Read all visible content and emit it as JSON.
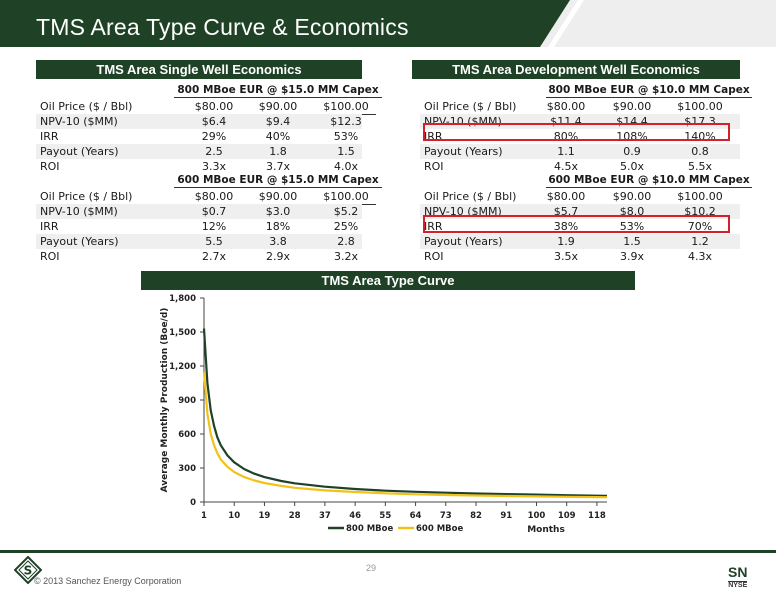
{
  "slide": {
    "title": "TMS Area Type Curve & Economics",
    "page_number": "29",
    "copyright": "© 2013 Sanchez Energy Corporation",
    "logo_letter": "S",
    "ticker": "SN",
    "exchange": "NYSE"
  },
  "single_well": {
    "title": "TMS Area Single Well Economics",
    "tables": [
      {
        "caption": "800 MBoe EUR @ $15.0 MM Capex",
        "rows": [
          {
            "label": "Oil Price ($ / Bbl)",
            "values": [
              "$80.00",
              "$90.00",
              "$100.00"
            ]
          },
          {
            "label": "NPV-10 ($MM)",
            "values": [
              "$6.4",
              "$9.4",
              "$12.3"
            ]
          },
          {
            "label": "IRR",
            "values": [
              "29%",
              "40%",
              "53%"
            ]
          },
          {
            "label": "Payout (Years)",
            "values": [
              "2.5",
              "1.8",
              "1.5"
            ]
          },
          {
            "label": "ROI",
            "values": [
              "3.3x",
              "3.7x",
              "4.0x"
            ]
          }
        ]
      },
      {
        "caption": "600 MBoe EUR @ $15.0 MM Capex",
        "rows": [
          {
            "label": "Oil Price ($ / Bbl)",
            "values": [
              "$80.00",
              "$90.00",
              "$100.00"
            ]
          },
          {
            "label": "NPV-10 ($MM)",
            "values": [
              "$0.7",
              "$3.0",
              "$5.2"
            ]
          },
          {
            "label": "IRR",
            "values": [
              "12%",
              "18%",
              "25%"
            ]
          },
          {
            "label": "Payout (Years)",
            "values": [
              "5.5",
              "3.8",
              "2.8"
            ]
          },
          {
            "label": "ROI",
            "values": [
              "2.7x",
              "2.9x",
              "3.2x"
            ]
          }
        ]
      }
    ]
  },
  "development_well": {
    "title": "TMS Area Development Well Economics",
    "tables": [
      {
        "caption": "800 MBoe EUR @ $10.0 MM Capex",
        "rows": [
          {
            "label": "Oil Price ($ / Bbl)",
            "values": [
              "$80.00",
              "$90.00",
              "$100.00"
            ]
          },
          {
            "label": "NPV-10 ($MM)",
            "values": [
              "$11.4",
              "$14.4",
              "$17.3"
            ]
          },
          {
            "label": "IRR",
            "values": [
              "80%",
              "108%",
              "140%"
            ]
          },
          {
            "label": "Payout (Years)",
            "values": [
              "1.1",
              "0.9",
              "0.8"
            ]
          },
          {
            "label": "ROI",
            "values": [
              "4.5x",
              "5.0x",
              "5.5x"
            ]
          }
        ]
      },
      {
        "caption": "600 MBoe EUR @ $10.0 MM Capex",
        "rows": [
          {
            "label": "Oil Price ($ / Bbl)",
            "values": [
              "$80.00",
              "$90.00",
              "$100.00"
            ]
          },
          {
            "label": "NPV-10 ($MM)",
            "values": [
              "$5.7",
              "$8.0",
              "$10.2"
            ]
          },
          {
            "label": "IRR",
            "values": [
              "38%",
              "53%",
              "70%"
            ]
          },
          {
            "label": "Payout (Years)",
            "values": [
              "1.9",
              "1.5",
              "1.2"
            ]
          },
          {
            "label": "ROI",
            "values": [
              "3.5x",
              "3.9x",
              "4.3x"
            ]
          }
        ]
      }
    ]
  },
  "colors": {
    "brand_green": "#1f4227",
    "series_800": "#1f4227",
    "series_600": "#f2c21a",
    "highlight_red": "#d3202b"
  },
  "chart_data": {
    "type": "line",
    "title": "TMS Area Type Curve",
    "xlabel": "Months",
    "ylabel": "Average Monthly Production (Boe/d)",
    "x_ticks": [
      "1",
      "10",
      "19",
      "28",
      "37",
      "46",
      "55",
      "64",
      "73",
      "82",
      "91",
      "100",
      "109",
      "118"
    ],
    "y_ticks": [
      "0",
      "300",
      "600",
      "900",
      "1,200",
      "1,500",
      "1,800"
    ],
    "xlim": [
      1,
      121
    ],
    "ylim": [
      0,
      1800
    ],
    "grid": false,
    "legend": "bottom",
    "series": [
      {
        "name": "800 MBoe",
        "x": [
          1,
          2,
          3,
          4,
          5,
          6,
          8,
          10,
          13,
          16,
          19,
          24,
          28,
          37,
          46,
          55,
          64,
          73,
          82,
          91,
          100,
          109,
          118,
          121
        ],
        "y": [
          1530,
          1050,
          810,
          670,
          570,
          500,
          410,
          350,
          290,
          250,
          220,
          185,
          165,
          135,
          115,
          100,
          90,
          82,
          75,
          70,
          65,
          60,
          56,
          55
        ]
      },
      {
        "name": "600 MBoe",
        "x": [
          1,
          2,
          3,
          4,
          5,
          6,
          8,
          10,
          13,
          16,
          19,
          24,
          28,
          37,
          46,
          55,
          64,
          73,
          82,
          91,
          100,
          109,
          118,
          121
        ],
        "y": [
          1150,
          780,
          600,
          500,
          430,
          375,
          310,
          265,
          220,
          190,
          168,
          142,
          125,
          102,
          88,
          77,
          68,
          62,
          57,
          53,
          49,
          46,
          43,
          42
        ]
      }
    ]
  }
}
